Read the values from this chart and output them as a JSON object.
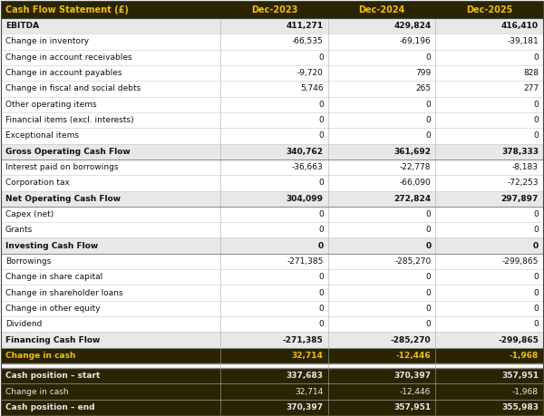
{
  "title_col": "Cash Flow Statement (£)",
  "col_headers": [
    "Dec-2023",
    "Dec-2024",
    "Dec-2025"
  ],
  "header_bg": "#2b2400",
  "header_text_color": "#f0c000",
  "rows": [
    {
      "label": "EBITDA",
      "values": [
        "411,271",
        "429,824",
        "416,410"
      ],
      "style": "bold_lgray"
    },
    {
      "label": "Change in inventory",
      "values": [
        "-66,535",
        "-69,196",
        "-39,181"
      ],
      "style": "normal"
    },
    {
      "label": "Change in account receivables",
      "values": [
        "0",
        "0",
        "0"
      ],
      "style": "normal"
    },
    {
      "label": "Change in account payables",
      "values": [
        "-9,720",
        "799",
        "828"
      ],
      "style": "normal"
    },
    {
      "label": "Change in fiscal and social debts",
      "values": [
        "5,746",
        "265",
        "277"
      ],
      "style": "normal"
    },
    {
      "label": "Other operating items",
      "values": [
        "0",
        "0",
        "0"
      ],
      "style": "normal"
    },
    {
      "label": "Financial items (excl. interests)",
      "values": [
        "0",
        "0",
        "0"
      ],
      "style": "normal"
    },
    {
      "label": "Exceptional items",
      "values": [
        "0",
        "0",
        "0"
      ],
      "style": "normal"
    },
    {
      "label": "Gross Operating Cash Flow",
      "values": [
        "340,762",
        "361,692",
        "378,333"
      ],
      "style": "bold_gray"
    },
    {
      "label": "Interest paid on borrowings",
      "values": [
        "-36,663",
        "-22,778",
        "-8,183"
      ],
      "style": "normal"
    },
    {
      "label": "Corporation tax",
      "values": [
        "0",
        "-66,090",
        "-72,253"
      ],
      "style": "normal"
    },
    {
      "label": "Net Operating Cash Flow",
      "values": [
        "304,099",
        "272,824",
        "297,897"
      ],
      "style": "bold_gray"
    },
    {
      "label": "Capex (net)",
      "values": [
        "0",
        "0",
        "0"
      ],
      "style": "normal"
    },
    {
      "label": "Grants",
      "values": [
        "0",
        "0",
        "0"
      ],
      "style": "normal"
    },
    {
      "label": "Investing Cash Flow",
      "values": [
        "0",
        "0",
        "0"
      ],
      "style": "bold_gray"
    },
    {
      "label": "Borrowings",
      "values": [
        "-271,385",
        "-285,270",
        "-299,865"
      ],
      "style": "normal"
    },
    {
      "label": "Change in share capital",
      "values": [
        "0",
        "0",
        "0"
      ],
      "style": "normal"
    },
    {
      "label": "Change in shareholder loans",
      "values": [
        "0",
        "0",
        "0"
      ],
      "style": "normal"
    },
    {
      "label": "Change in other equity",
      "values": [
        "0",
        "0",
        "0"
      ],
      "style": "normal"
    },
    {
      "label": "Dividend",
      "values": [
        "0",
        "0",
        "0"
      ],
      "style": "normal"
    },
    {
      "label": "Financing Cash Flow",
      "values": [
        "-271,385",
        "-285,270",
        "-299,865"
      ],
      "style": "bold_gray"
    },
    {
      "label": "Change in cash",
      "values": [
        "32,714",
        "-12,446",
        "-1,968"
      ],
      "style": "bold_dark"
    },
    {
      "label": "Cash position – start",
      "values": [
        "337,683",
        "370,397",
        "357,951"
      ],
      "style": "bold_dark2"
    },
    {
      "label": "Change in cash",
      "values": [
        "32,714",
        "-12,446",
        "-1,968"
      ],
      "style": "normal_dark2"
    },
    {
      "label": "Cash position – end",
      "values": [
        "370,397",
        "357,951",
        "355,983"
      ],
      "style": "bold_dark2"
    }
  ],
  "bg_white": "#ffffff",
  "bg_lgray": "#e8e8e8",
  "bg_gray": "#d8d8d8",
  "bg_dark": "#2b2400",
  "bg_dark2": "#2b2400",
  "text_black": "#111111",
  "text_white": "#e8e8e8",
  "text_yellow": "#f0c000",
  "border_light": "#c8c8c8",
  "border_dark": "#555555"
}
